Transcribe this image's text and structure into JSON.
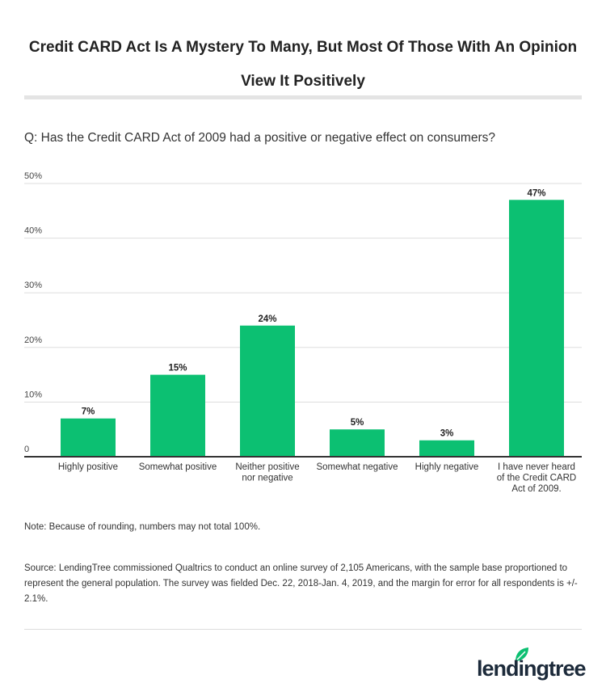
{
  "title": "Credit CARD Act Is A Mystery To Many, But Most Of Those With An Opinion View It Positively",
  "question": "Q: Has the Credit CARD Act of 2009 had a positive or negative effect on consumers?",
  "note": "Note: Because of rounding, numbers may not total 100%.",
  "source": "Source: LendingTree commissioned Qualtrics to conduct an online survey of 2,105 Americans, with the sample base proportioned to represent the general population. The survey was fielded Dec. 22, 2018-Jan. 4, 2019, and the margin for error for all respondents is +/- 2.1%.",
  "logo": "lendingtree",
  "chart_data": {
    "type": "bar",
    "categories": [
      "Highly positive",
      "Somewhat positive",
      "Neither positive nor negative",
      "Somewhat negative",
      "Highly negative",
      "I have never heard of the Credit CARD Act of 2009."
    ],
    "values": [
      7,
      15,
      24,
      5,
      3,
      47
    ],
    "data_labels": [
      "7%",
      "15%",
      "24%",
      "5%",
      "3%",
      "47%"
    ],
    "yticks": [
      "0",
      "10%",
      "20%",
      "30%",
      "40%",
      "50%"
    ],
    "ylim": [
      0,
      50
    ],
    "grid": true,
    "bar_color": "#0cc072",
    "xlabel": "",
    "ylabel": ""
  }
}
